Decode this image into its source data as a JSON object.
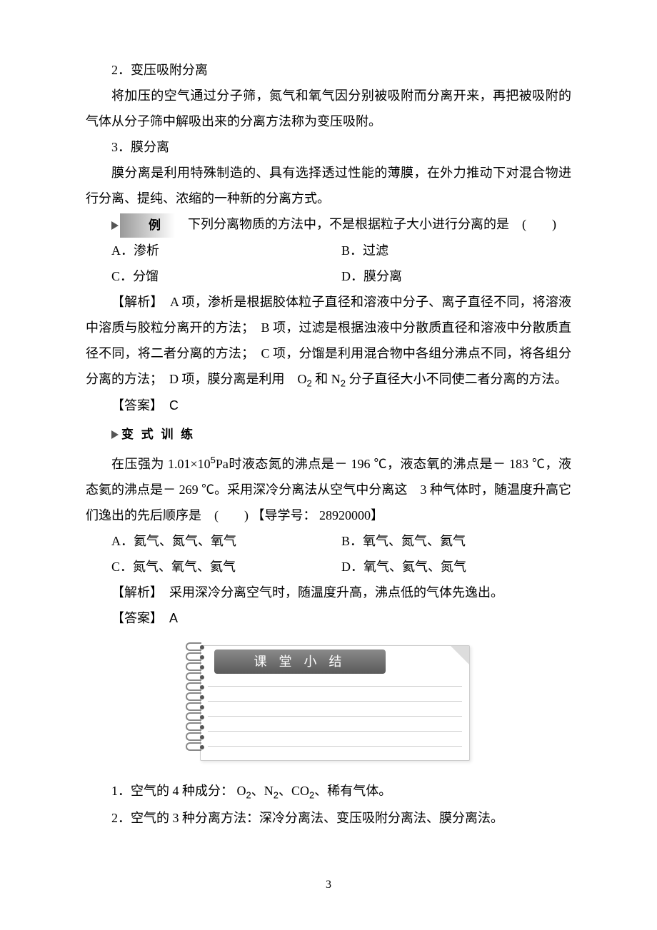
{
  "sec2": {
    "title": "2．变压吸附分离",
    "body": "将加压的空气通过分子筛，氮气和氧气因分别被吸附而分离开来，再把被吸附的气体从分子筛中解吸出来的分离方法称为变压吸附。"
  },
  "sec3": {
    "title": "3．膜分离",
    "body": "膜分离是利用特殊制造的、具有选择透过性能的薄膜，在外力推动下对混合物进行分离、提纯、浓缩的一种新的分离方式。"
  },
  "example": {
    "label": "例",
    "stem_after": "　下列分离物质的方法中，不是根据粒子大小进行分离的是　(　　)",
    "optA": "A．渗析",
    "optB": "B．过滤",
    "optC": "C．分馏",
    "optD": "D．膜分离",
    "analysis_label": "【解析】　",
    "analysis_1": "A 项，渗析是根据胶体粒子直径和溶液中分子、离子直径不同，将溶液中溶质与胶粒分离开的方法；　B 项，过滤是根据浊液中分散质直径和溶液中分散质直径不同，将二者分离的方法；　C 项，分馏是利用混合物中各组分沸点不同，将各组分分离的方法；　D 项，膜分离是利用　O",
    "analysis_sub1": "2",
    "analysis_mid": " 和 N",
    "analysis_sub2": "2",
    "analysis_2": " 分子直径大小不同使二者分离的方法。",
    "answer_label": "【答案】　",
    "answer": "C"
  },
  "variant": {
    "label": "变 式 训 练",
    "stem_1": "在压强为 1.01×10",
    "stem_sup": "5",
    "stem_2": "Pa时液态氮的沸点是－ 196 ℃，液态氧的沸点是－ 183 ℃，液态氦的沸点是－ 269 ℃。采用深冷分离法从空气中分离这　3 种气体时，随温度升高它们逸出的先后顺序是　(　　) 【导学号： 28920000】",
    "optA": "A．氦气、氮气、氧气",
    "optB": "B．氧气、氮气、氦气",
    "optC": "C．氮气、氧气、氦气",
    "optD": "D．氧气、氦气、氮气",
    "analysis_label": "【解析】　",
    "analysis": "采用深冷分离空气时，随温度升高，沸点低的气体先逸出。",
    "answer_label": "【答案】　",
    "answer": "A"
  },
  "summary": {
    "header": "课 堂 小 结",
    "item1_a": "1．空气的 4 种成分： O",
    "item1_b": "、N",
    "item1_c": "、CO",
    "item1_d": "、稀有气体。",
    "sub2": "2",
    "item2": "2．空气的 3 种分离方法：深冷分离法、变压吸附分离法、膜分离法。"
  },
  "page_number": "3",
  "colors": {
    "text": "#000000",
    "bg": "#ffffff",
    "header_grad_top": "#8a8a8a",
    "header_grad_bottom": "#5a5a5a",
    "note_line": "#cccccc",
    "spiral": "#888888"
  }
}
